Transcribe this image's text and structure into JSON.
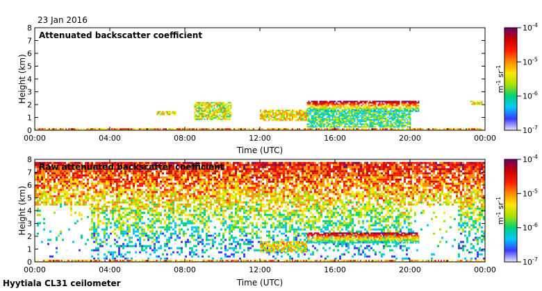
{
  "date_label": "23 Jan 2016",
  "site_label": "Hyytiala CL31 ceilometer",
  "colors": {
    "cmap": [
      "#e8e8ff",
      "#3a3aff",
      "#00c8ff",
      "#00d27a",
      "#a8e000",
      "#ffe600",
      "#ff8c00",
      "#ff1a00",
      "#c80000",
      "#6b006b"
    ]
  },
  "chart_data": [
    {
      "type": "heatmap",
      "title": "Attenuated backscatter coefficient",
      "xlabel": "Time (UTC)",
      "ylabel": "Height (km)",
      "xlim": [
        0,
        24
      ],
      "ylim": [
        0,
        8
      ],
      "x_ticks": [
        0,
        4,
        8,
        12,
        16,
        20,
        24
      ],
      "x_tick_labels": [
        "00:00",
        "04:00",
        "08:00",
        "12:00",
        "16:00",
        "20:00",
        "00:00"
      ],
      "y_ticks": [
        0,
        1,
        2,
        3,
        4,
        5,
        6,
        7,
        8
      ],
      "y_tick_labels": [
        "0",
        "1",
        "2",
        "3",
        "4",
        "5",
        "6",
        "7",
        "8"
      ],
      "colorbar": {
        "scale": "log",
        "ticks": [
          "10^-7",
          "10^-6",
          "10^-5",
          "10^-4"
        ],
        "unit_label": "m^-1 sr^-1"
      },
      "features": [
        {
          "name": "surface layer",
          "t": [
            0,
            24
          ],
          "h": [
            0.0,
            0.15
          ],
          "level": 0.65
        },
        {
          "name": "scattered low cloud",
          "t": [
            6.5,
            7.5
          ],
          "h": [
            1.2,
            1.5
          ],
          "level": 0.55
        },
        {
          "name": "cloud patches",
          "t": [
            8.5,
            10.5
          ],
          "h": [
            0.8,
            2.2
          ],
          "level": 0.5
        },
        {
          "name": "cloud layer",
          "t": [
            12.0,
            14.5
          ],
          "h": [
            0.8,
            1.6
          ],
          "level": 0.55
        },
        {
          "name": "thick cloud",
          "t": [
            14.5,
            20.5
          ],
          "h": [
            1.5,
            2.3
          ],
          "level": 0.75
        },
        {
          "name": "precipitation",
          "t": [
            14.5,
            20.0
          ],
          "h": [
            0.3,
            1.5
          ],
          "level": 0.35
        },
        {
          "name": "high residue",
          "t": [
            23.2,
            23.8
          ],
          "h": [
            2.0,
            2.3
          ],
          "level": 0.55
        }
      ]
    },
    {
      "type": "heatmap",
      "title": "Raw attenuated backscatter coefficient",
      "xlabel": "Time (UTC)",
      "ylabel": "Height (km)",
      "xlim": [
        0,
        24
      ],
      "ylim": [
        0,
        8
      ],
      "x_ticks": [
        0,
        4,
        8,
        12,
        16,
        20,
        24
      ],
      "x_tick_labels": [
        "00:00",
        "04:00",
        "08:00",
        "12:00",
        "16:00",
        "20:00",
        "00:00"
      ],
      "y_ticks": [
        0,
        1,
        2,
        3,
        4,
        5,
        6,
        7,
        8
      ],
      "y_tick_labels": [
        "0",
        "1",
        "2",
        "3",
        "4",
        "5",
        "6",
        "7",
        "8"
      ],
      "colorbar": {
        "scale": "log",
        "ticks": [
          "10^-7",
          "10^-6",
          "10^-5",
          "10^-4"
        ],
        "unit_label": "m^-1 sr^-1"
      },
      "features": [
        {
          "name": "noise field",
          "t": [
            0,
            24
          ],
          "h": [
            0.3,
            7.8
          ],
          "level": 0.5
        },
        {
          "name": "surface layer",
          "t": [
            0,
            24
          ],
          "h": [
            0.0,
            0.15
          ],
          "level": 0.65
        },
        {
          "name": "thick cloud",
          "t": [
            14.5,
            20.5
          ],
          "h": [
            1.5,
            2.3
          ],
          "level": 0.75
        },
        {
          "name": "cloud layer",
          "t": [
            12.0,
            14.5
          ],
          "h": [
            0.8,
            1.6
          ],
          "level": 0.55
        }
      ]
    }
  ]
}
